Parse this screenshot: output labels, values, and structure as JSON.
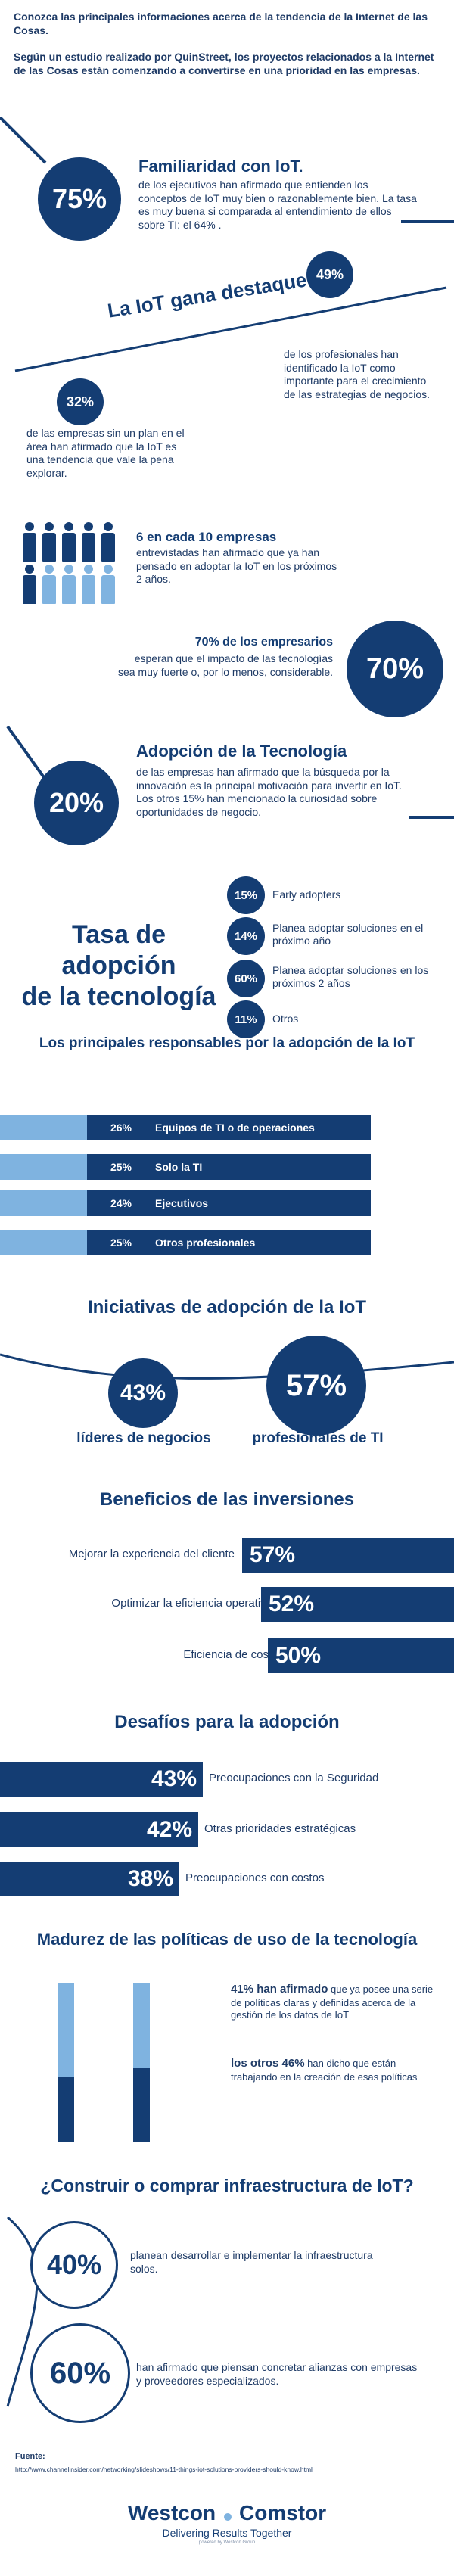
{
  "intro": {
    "line1": "Conozca las principales informaciones acerca de la tendencia de la Internet de las Cosas.",
    "line2": "Según un estudio realizado por QuinStreet, los proyectos relacionados a la Internet de las Cosas están comenzando a convertirse en una prioridad en las empresas."
  },
  "familiaridad": {
    "pct": "75%",
    "title": "Familiaridad con IoT.",
    "text": "de los ejecutivos han afirmado que entienden los conceptos de IoT muy bien o razonablemente bien. La tasa es muy buena si comparada al entendimiento de ellos sobre TI: el 64% ."
  },
  "destaque": {
    "title": "La IoT gana destaque:",
    "pct_a": "49%",
    "text_a": "de los profesionales han identificado la IoT como importante para el crecimiento de las estrategias de negocios.",
    "pct_b": "32%",
    "text_b": "de las empresas sin un plan en el área han afirmado que la IoT es una tendencia que vale la pena explorar."
  },
  "seis": {
    "title": "6 en cada 10 empresas",
    "text": "entrevistadas han afirmado que ya han pensado en adoptar la IoT en los próximos 2 años.",
    "highlighted": 6,
    "total": 10
  },
  "setenta": {
    "title": "70% de los empresarios",
    "text": "esperan que el impacto de las tecnologías sea muy fuerte o, por lo menos, considerable.",
    "pct": "70%"
  },
  "adopcion_tec": {
    "pct": "20%",
    "title": "Adopción de la Tecnología",
    "text": "de las empresas han afirmado que la búsqueda por la innovación es la principal motivación para invertir en IoT. Los otros 15% han mencionado la curiosidad sobre oportunidades de negocio."
  },
  "tasa": {
    "title_line1": "Tasa de adopción",
    "title_line2": "de la tecnología",
    "items": [
      {
        "pct": "15%",
        "label": "Early adopters"
      },
      {
        "pct": "14%",
        "label": "Planea adoptar soluciones en el próximo año"
      },
      {
        "pct": "60%",
        "label": "Planea adoptar soluciones en los próximos 2 años"
      },
      {
        "pct": "11%",
        "label": "Otros"
      }
    ]
  },
  "responsables": {
    "title": "Los principales responsables por la adopción de la IoT",
    "items": [
      {
        "pct": "26%",
        "label": "Equipos de TI o de operaciones"
      },
      {
        "pct": "25%",
        "label": "Solo la TI"
      },
      {
        "pct": "24%",
        "label": "Ejecutivos"
      },
      {
        "pct": "25%",
        "label": "Otros profesionales"
      }
    ]
  },
  "iniciativas": {
    "title": "Iniciativas de adopción de la IoT",
    "a_pct": "43%",
    "a_label": "líderes de negocios",
    "b_pct": "57%",
    "b_label": "profesionales de TI"
  },
  "beneficios": {
    "title": "Beneficios de las inversiones",
    "items": [
      {
        "label": "Mejorar la experiencia del cliente",
        "pct": "57%",
        "value": 57
      },
      {
        "label": "Optimizar la eficiencia operativa",
        "pct": "52%",
        "value": 52
      },
      {
        "label": "Eficiencia de costos",
        "pct": "50%",
        "value": 50
      }
    ]
  },
  "desafios": {
    "title": "Desafíos para la adopción",
    "items": [
      {
        "pct": "43%",
        "label": "Preocupaciones con la Seguridad",
        "value": 43
      },
      {
        "pct": "42%",
        "label": "Otras prioridades estratégicas",
        "value": 42
      },
      {
        "pct": "38%",
        "label": "Preocupaciones con costos",
        "value": 38
      }
    ]
  },
  "madurez": {
    "title": "Madurez de las políticas de uso de la tecnología",
    "a_strong": "41% han afirmado",
    "a_text": " que ya posee una serie de políticas claras y definidas acerca de la gestión de los datos de IoT",
    "b_strong": "los otros 46%",
    "b_text": " han dicho que están trabajando en la creación de esas políticas",
    "a_value": 41,
    "b_value": 46
  },
  "construir": {
    "title": "¿Construir o comprar infraestructura de IoT?",
    "a_pct": "40%",
    "a_text": "planean desarrollar e implementar la infraestructura solos.",
    "b_pct": "60%",
    "b_text": "han afirmado que piensan concretar alianzas con empresas y proveedores especializados."
  },
  "footer": {
    "source_label": "Fuente:",
    "source_url": "http://www.channelinsider.com/networking/slideshows/11-things-iot-solutions-providers-should-know.html",
    "brand_left": "Westcon",
    "brand_right": "Comstor",
    "tagline": "Delivering Results Together",
    "sub": "powered by Westcon Group"
  },
  "colors": {
    "navy": "#143d73",
    "light_blue": "#7fb3e0",
    "text": "#1f3b66"
  }
}
